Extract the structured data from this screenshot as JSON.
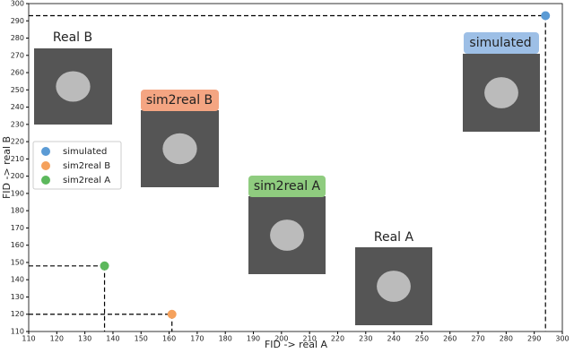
{
  "chart_data": {
    "type": "scatter",
    "xlabel": "FID -> real A",
    "ylabel": "FID -> real B",
    "series": [
      {
        "name": "simulated",
        "color": "#5b9bd5",
        "x": [
          294
        ],
        "values": [
          293
        ]
      },
      {
        "name": "sim2real B",
        "color": "#f5a15c",
        "x": [
          161
        ],
        "values": [
          120
        ]
      },
      {
        "name": "sim2real A",
        "color": "#5cb85c",
        "x": [
          137
        ],
        "values": [
          148
        ]
      }
    ],
    "xlim": [
      110,
      300
    ],
    "xticks": [
      110,
      120,
      130,
      140,
      150,
      160,
      170,
      180,
      190,
      200,
      210,
      220,
      230,
      240,
      250,
      260,
      270,
      280,
      290,
      300
    ],
    "ylim": [
      110,
      300
    ],
    "yticks": [
      110,
      120,
      130,
      140,
      150,
      160,
      170,
      180,
      190,
      200,
      210,
      220,
      230,
      240,
      250,
      260,
      270,
      280,
      290,
      300
    ],
    "legend": "upper left",
    "annotations": [
      {
        "text": "Real B"
      },
      {
        "text": "sim2real B",
        "color": "#f4a582"
      },
      {
        "text": "sim2real A",
        "color": "#8fcc7f"
      },
      {
        "text": "Real A"
      },
      {
        "text": "simulated",
        "color": "#9dbfe6"
      }
    ]
  }
}
